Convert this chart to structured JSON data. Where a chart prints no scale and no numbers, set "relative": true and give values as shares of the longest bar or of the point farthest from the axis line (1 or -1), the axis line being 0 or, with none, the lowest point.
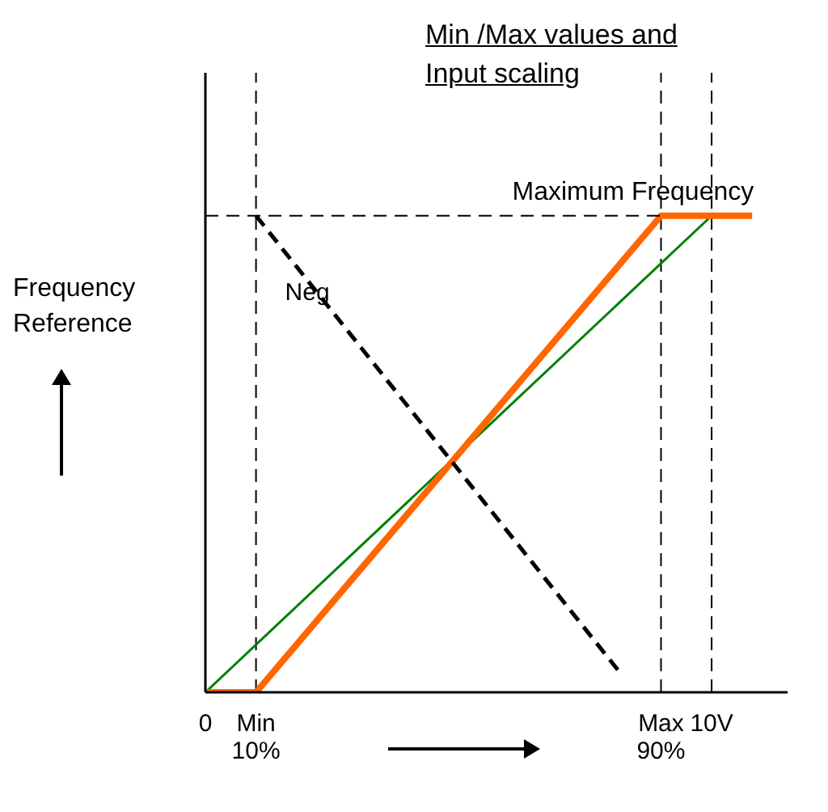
{
  "chart_data": {
    "type": "line",
    "title": "Min /Max values and Input scaling",
    "ylabel": "Frequency Reference",
    "relative": true,
    "xlim": [
      0,
      11.5
    ],
    "xticks": [
      0,
      {
        "value": 1,
        "label": "Min\n10%"
      },
      {
        "value": 9,
        "label": "Max\n90%"
      },
      {
        "value": 10,
        "label": "10V"
      }
    ],
    "series": [
      {
        "color": "#008000",
        "x": [
          0,
          10
        ],
        "values": [
          0,
          1
        ]
      },
      {
        "color": "#ff6600",
        "x": [
          0,
          1,
          9,
          10.8
        ],
        "values": [
          0,
          0,
          1,
          1
        ]
      },
      {
        "name": "Neg",
        "color": "#000000",
        "line_style": "dashed",
        "x": [
          1,
          8.2
        ],
        "values": [
          1,
          0.04
        ]
      },
      {
        "color": "#000000",
        "line_style": "dashed",
        "x": [
          0,
          9
        ],
        "values": [
          1,
          1
        ]
      }
    ],
    "annotations": [
      {
        "text": "Maximum Frequency",
        "x": 9,
        "y": 1
      }
    ],
    "ref_lines": [
      {
        "axis": "x",
        "value": 1,
        "line_style": "dashed",
        "color": "#000000"
      },
      {
        "axis": "x",
        "value": 9,
        "line_style": "dashed",
        "color": "#000000"
      },
      {
        "axis": "x",
        "value": 10,
        "line_style": "dashed",
        "color": "#000000"
      }
    ],
    "grid": false,
    "marker": "none"
  }
}
